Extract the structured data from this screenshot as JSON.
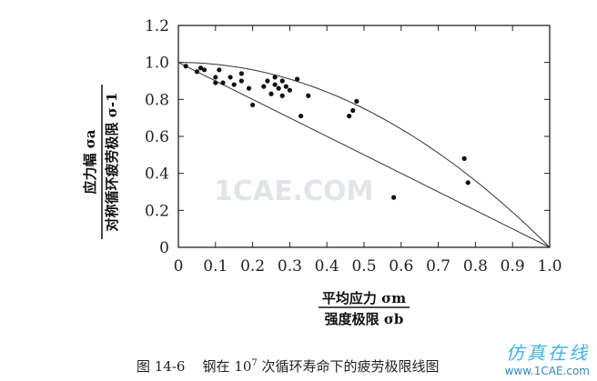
{
  "chart_data": {
    "type": "scatter",
    "title": "",
    "xlabel_numerator": "平均应力 σm",
    "xlabel_denominator": "强度极限 σb",
    "ylabel_numerator": "应力幅 σa",
    "ylabel_denominator": "对称循环疲劳极限 σ-1",
    "xlim": [
      0,
      1.0
    ],
    "ylim": [
      0,
      1.2
    ],
    "x_ticks": [
      "0",
      "0.1",
      "0.2",
      "0.3",
      "0.4",
      "0.5",
      "0.6",
      "0.7",
      "0.8",
      "0.9",
      "1.0"
    ],
    "y_ticks": [
      "0",
      "0.2",
      "0.4",
      "0.6",
      "0.8",
      "1.0",
      "1.2"
    ],
    "grid": false,
    "points": [
      {
        "x": 0.02,
        "y": 0.98
      },
      {
        "x": 0.05,
        "y": 0.95
      },
      {
        "x": 0.06,
        "y": 0.97
      },
      {
        "x": 0.07,
        "y": 0.96
      },
      {
        "x": 0.1,
        "y": 0.92
      },
      {
        "x": 0.1,
        "y": 0.89
      },
      {
        "x": 0.11,
        "y": 0.96
      },
      {
        "x": 0.12,
        "y": 0.89
      },
      {
        "x": 0.14,
        "y": 0.92
      },
      {
        "x": 0.15,
        "y": 0.88
      },
      {
        "x": 0.17,
        "y": 0.94
      },
      {
        "x": 0.17,
        "y": 0.9
      },
      {
        "x": 0.19,
        "y": 0.86
      },
      {
        "x": 0.2,
        "y": 0.77
      },
      {
        "x": 0.23,
        "y": 0.87
      },
      {
        "x": 0.24,
        "y": 0.9
      },
      {
        "x": 0.25,
        "y": 0.83
      },
      {
        "x": 0.26,
        "y": 0.92
      },
      {
        "x": 0.26,
        "y": 0.88
      },
      {
        "x": 0.27,
        "y": 0.86
      },
      {
        "x": 0.28,
        "y": 0.82
      },
      {
        "x": 0.28,
        "y": 0.9
      },
      {
        "x": 0.29,
        "y": 0.87
      },
      {
        "x": 0.3,
        "y": 0.85
      },
      {
        "x": 0.32,
        "y": 0.91
      },
      {
        "x": 0.33,
        "y": 0.71
      },
      {
        "x": 0.35,
        "y": 0.82
      },
      {
        "x": 0.46,
        "y": 0.71
      },
      {
        "x": 0.47,
        "y": 0.74
      },
      {
        "x": 0.48,
        "y": 0.79
      },
      {
        "x": 0.58,
        "y": 0.27
      },
      {
        "x": 0.77,
        "y": 0.48
      },
      {
        "x": 0.78,
        "y": 0.35
      }
    ],
    "lines": [
      {
        "curve": "goodman",
        "from": [
          0,
          1.0
        ],
        "to": [
          1.0,
          0
        ]
      },
      {
        "curve": "gerber",
        "points": [
          [
            0,
            1.0
          ],
          [
            0.1,
            0.99
          ],
          [
            0.2,
            0.96
          ],
          [
            0.3,
            0.91
          ],
          [
            0.4,
            0.84
          ],
          [
            0.5,
            0.75
          ],
          [
            0.6,
            0.64
          ],
          [
            0.7,
            0.51
          ],
          [
            0.8,
            0.36
          ],
          [
            0.9,
            0.19
          ],
          [
            1.0,
            0
          ]
        ]
      }
    ]
  },
  "caption": {
    "prefix": "图 14-6",
    "text_before_exp": "钢在 10",
    "exponent": "7",
    "text_after_exp": " 次循环寿命下的疲劳极限线图"
  },
  "watermark": {
    "center": "1CAE.COM",
    "brand_cn": "仿真在线",
    "brand_url": "www.1CAE.com"
  }
}
